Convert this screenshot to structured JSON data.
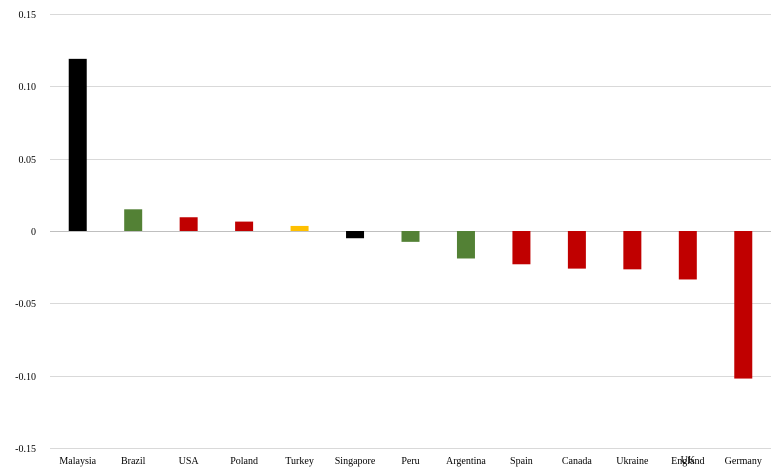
{
  "chart_data": {
    "type": "bar",
    "title": "",
    "xlabel": "",
    "ylabel": "",
    "ylim": [
      -0.15,
      0.15
    ],
    "yticks": [
      {
        "value": 0.15,
        "label": "0.15"
      },
      {
        "value": 0.1,
        "label": "0.10"
      },
      {
        "value": 0.05,
        "label": "0.05"
      },
      {
        "value": 0,
        "label": "0"
      },
      {
        "value": -0.05,
        "label": "-0.05"
      },
      {
        "value": -0.1,
        "label": "-0.10"
      },
      {
        "value": -0.15,
        "label": "-0.15"
      }
    ],
    "grid": true,
    "legend": "none",
    "categories": [
      "Malaysia",
      "Brazil",
      "USA",
      "Poland",
      "Turkey",
      "Singapore",
      "Peru",
      "Argentina",
      "Spain",
      "Canada",
      "Ukraine",
      "England",
      "Germany"
    ],
    "overlap_labels": [
      {
        "category_index": 11,
        "text": "UK"
      }
    ],
    "values": [
      0.119,
      0.015,
      0.0095,
      0.0065,
      0.0035,
      -0.005,
      -0.0075,
      -0.019,
      -0.023,
      -0.026,
      -0.0265,
      -0.0335,
      -0.102
    ],
    "colors": [
      "#000000",
      "#538135",
      "#c00000",
      "#c00000",
      "#ffc000",
      "#000000",
      "#538135",
      "#538135",
      "#c00000",
      "#c00000",
      "#c00000",
      "#c00000",
      "#c00000"
    ]
  }
}
